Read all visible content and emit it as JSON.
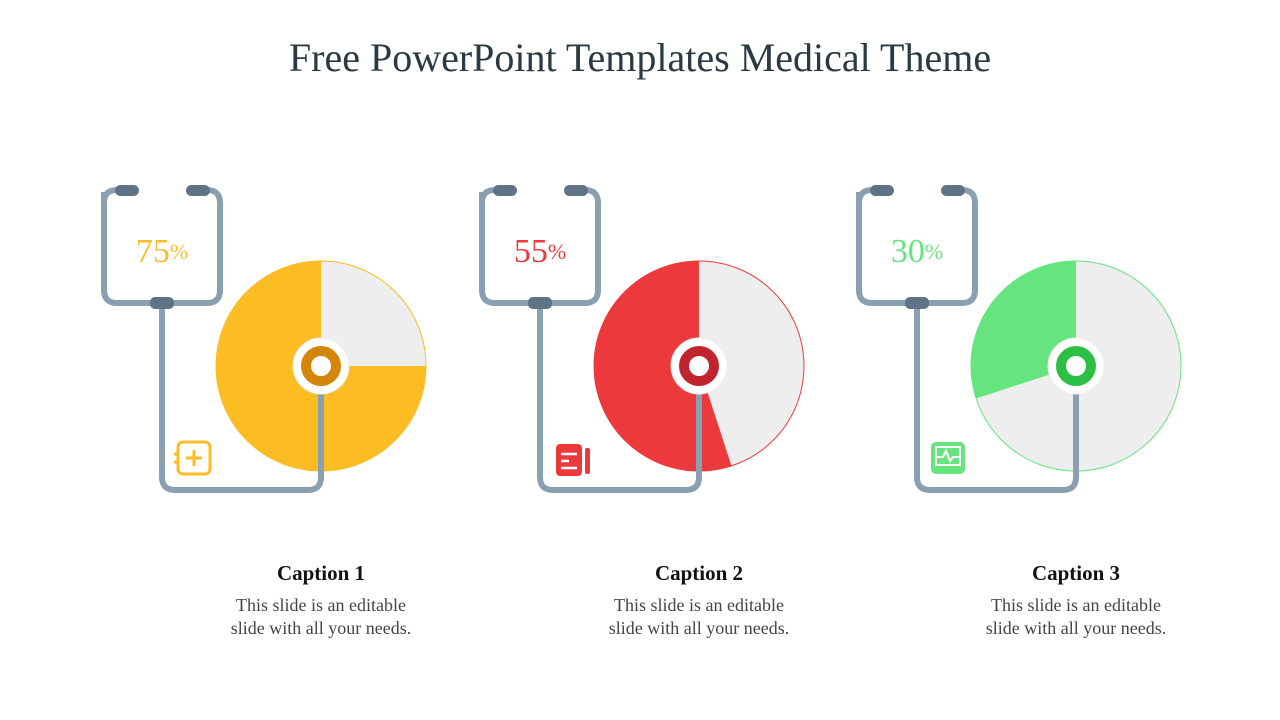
{
  "title": "Free PowerPoint Templates Medical Theme",
  "chart_data": [
    {
      "type": "pie",
      "values": [
        75
      ],
      "value_labels": [
        "75%"
      ],
      "color": "#FBBC24",
      "title": "Caption 1",
      "subtitle": "This slide is an editable slide with all your needs."
    },
    {
      "type": "pie",
      "values": [
        55
      ],
      "value_labels": [
        "55%"
      ],
      "color": "#EC3A3C",
      "title": "Caption 2",
      "subtitle": "This slide is an editable slide with all your needs."
    },
    {
      "type": "pie",
      "values": [
        30
      ],
      "value_labels": [
        "30%"
      ],
      "color": "#66E47E",
      "title": "Caption 3",
      "subtitle": "This slide is an editable slide with all your needs."
    }
  ]
}
